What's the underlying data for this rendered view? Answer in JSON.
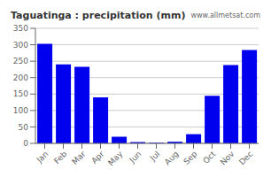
{
  "chart_data": {
    "type": "bar",
    "title": "Taguatinga : precipitation (mm)",
    "annotations": [
      "www.allmetsat.com"
    ],
    "categories": [
      "Jan",
      "Feb",
      "Mar",
      "Apr",
      "May",
      "Jun",
      "Jul",
      "Aug",
      "Sep",
      "Oct",
      "Nov",
      "Dec"
    ],
    "values": [
      303,
      240,
      233,
      140,
      20,
      4,
      2,
      5,
      28,
      145,
      238,
      284
    ],
    "color": "#0000ee",
    "ylim": [
      0,
      350
    ],
    "yticks": [
      0,
      50,
      100,
      150,
      200,
      250,
      300,
      350
    ],
    "grid": true
  }
}
